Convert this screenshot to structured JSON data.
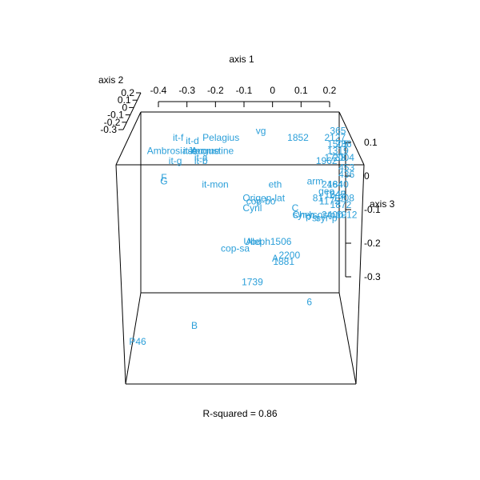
{
  "chart_data": {
    "type": "scatter",
    "subtype": "3d-text-scatter",
    "title": "",
    "caption": "R-squared = 0.86",
    "label_color": "#2b9fd9",
    "axes": {
      "axis1": {
        "label": "axis 1",
        "ticks": [
          "-0.4",
          "-0.3",
          "-0.2",
          "-0.1",
          "0",
          "0.1",
          "0.2"
        ],
        "range": [
          -0.45,
          0.23
        ]
      },
      "axis2": {
        "label": "axis 2",
        "ticks": [
          "0.2",
          "0.1",
          "0",
          "-0.1",
          "-0.2",
          "-0.3"
        ],
        "range": [
          -0.3,
          0.2
        ]
      },
      "axis3": {
        "label": "axis 3",
        "ticks": [
          "0.1",
          "0",
          "-0.1",
          "-0.2",
          "-0.3"
        ],
        "range": [
          -0.38,
          0.15
        ]
      }
    },
    "points": [
      {
        "label": "vg",
        "a1": -0.08,
        "a3": 0.13
      },
      {
        "label": "it-f",
        "a1": -0.37,
        "a3": 0.11
      },
      {
        "label": "it-d",
        "a1": -0.32,
        "a3": 0.1
      },
      {
        "label": "Pelagius",
        "a1": -0.22,
        "a3": 0.11
      },
      {
        "label": "1852",
        "a1": 0.05,
        "a3": 0.11
      },
      {
        "label": "365",
        "a1": 0.19,
        "a3": 0.13
      },
      {
        "label": "2127",
        "a1": 0.18,
        "a3": 0.11
      },
      {
        "label": "1505",
        "a1": 0.19,
        "a3": 0.09
      },
      {
        "label": "236",
        "a1": 0.21,
        "a3": 0.09
      },
      {
        "label": "it-c",
        "a1": -0.33,
        "a3": 0.07
      },
      {
        "label": "Ambrosiaster",
        "a1": -0.38,
        "a3": 0.07
      },
      {
        "label": "Jerome",
        "a1": -0.28,
        "a3": 0.07
      },
      {
        "label": "Augustine",
        "a1": -0.25,
        "a3": 0.07
      },
      {
        "label": "1319",
        "a1": 0.19,
        "a3": 0.07
      },
      {
        "label": "2004",
        "a1": 0.21,
        "a3": 0.05
      },
      {
        "label": "it-g",
        "a1": -0.38,
        "a3": 0.04
      },
      {
        "label": "1962",
        "a1": 0.15,
        "a3": 0.04
      },
      {
        "label": "it-a",
        "a1": -0.29,
        "a3": 0.05
      },
      {
        "label": "it-b",
        "a1": -0.29,
        "a3": 0.04
      },
      {
        "label": "1738",
        "a1": 0.18,
        "a3": 0.05
      },
      {
        "label": "453",
        "a1": 0.22,
        "a3": 0.02
      },
      {
        "label": "436",
        "a1": 0.22,
        "a3": 0.0
      },
      {
        "label": "F",
        "a1": -0.42,
        "a3": -0.01
      },
      {
        "label": "G",
        "a1": -0.42,
        "a3": -0.02
      },
      {
        "label": "it-mon",
        "a1": -0.24,
        "a3": -0.03
      },
      {
        "label": "eth",
        "a1": -0.03,
        "a3": -0.03
      },
      {
        "label": "arm",
        "a1": 0.11,
        "a3": -0.02
      },
      {
        "label": "2464",
        "a1": 0.17,
        "a3": -0.03
      },
      {
        "label": "1840",
        "a1": 0.19,
        "a3": -0.03
      },
      {
        "label": "geo",
        "a1": 0.15,
        "a3": -0.05
      },
      {
        "label": "1245",
        "a1": 0.18,
        "a3": -0.06
      },
      {
        "label": "642",
        "a1": 0.19,
        "a3": -0.06
      },
      {
        "label": "1908",
        "a1": 0.21,
        "a3": -0.07
      },
      {
        "label": "Origen-lat",
        "a1": -0.07,
        "a3": -0.07
      },
      {
        "label": "cop-bo",
        "a1": -0.08,
        "a3": -0.08
      },
      {
        "label": "81",
        "a1": 0.12,
        "a3": -0.07
      },
      {
        "label": "1175",
        "a1": 0.16,
        "a3": -0.08
      },
      {
        "label": "1872",
        "a1": 0.2,
        "a3": -0.09
      },
      {
        "label": "Cyril",
        "a1": -0.11,
        "a3": -0.1
      },
      {
        "label": "C",
        "a1": 0.04,
        "a3": -0.1
      },
      {
        "label": "syr-h",
        "a1": 0.07,
        "a3": -0.12
      },
      {
        "label": "Chrysostom",
        "a1": 0.12,
        "a3": -0.12
      },
      {
        "label": "Psi",
        "a1": 0.1,
        "a3": -0.13
      },
      {
        "label": "2400",
        "a1": 0.17,
        "a3": -0.12
      },
      {
        "label": "1912",
        "a1": 0.22,
        "a3": -0.12
      },
      {
        "label": "syr-p",
        "a1": 0.15,
        "a3": -0.13
      },
      {
        "label": "Aleph",
        "a1": -0.09,
        "a3": -0.2
      },
      {
        "label": "1506",
        "a1": -0.01,
        "a3": -0.2
      },
      {
        "label": "Ubd",
        "a1": -0.11,
        "a3": -0.2
      },
      {
        "label": "cop-sa",
        "a1": -0.17,
        "a3": -0.22
      },
      {
        "label": "2200",
        "a1": 0.02,
        "a3": -0.24
      },
      {
        "label": "A",
        "a1": -0.03,
        "a3": -0.25
      },
      {
        "label": "1881",
        "a1": 0.0,
        "a3": -0.26
      },
      {
        "label": "1739",
        "a1": -0.11,
        "a3": -0.32
      },
      {
        "label": "6",
        "a1": 0.09,
        "a3": -0.38
      }
    ],
    "front_points": [
      {
        "label": "B",
        "position": "front-left"
      },
      {
        "label": "P46",
        "position": "front-left-bottom"
      }
    ]
  }
}
